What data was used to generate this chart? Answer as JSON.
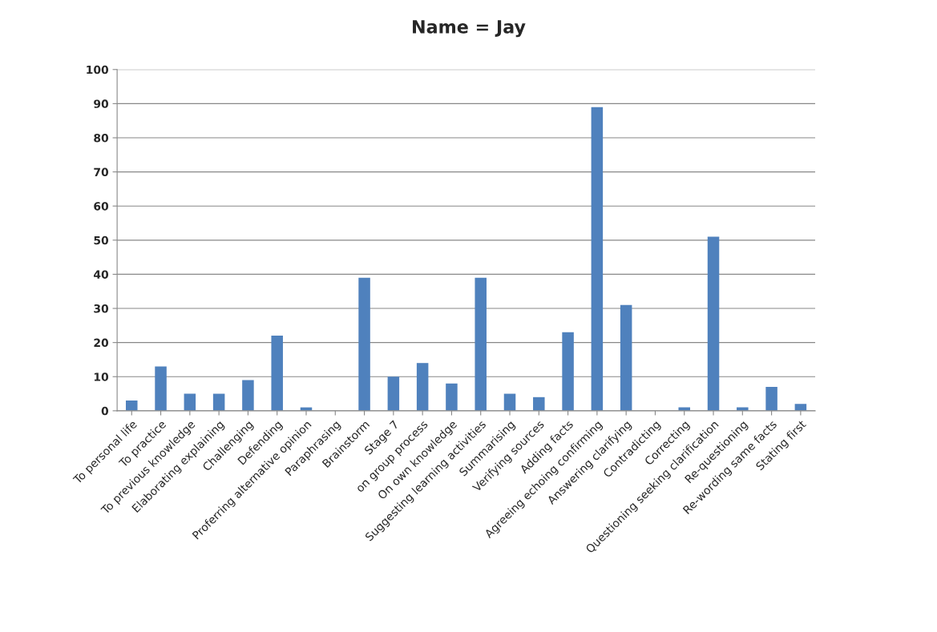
{
  "chart_data": {
    "type": "bar",
    "title": "Name = Jay",
    "categories": [
      "To personal life",
      "To practice",
      "To previous knowledge",
      "Elaborating explaining",
      "Challenging",
      "Defending",
      "Proferring alternative opinion",
      "Paraphrasing",
      "Brainstorm",
      "Stage 7",
      "on group process",
      "On own knowledge",
      "Suggesting learning activities",
      "Summarising",
      "Verifying sources",
      "Adding facts",
      "Agreeing echoing confirming",
      "Answering clarifying",
      "Contradicting",
      "Correcting",
      "Questioning seeking clarification",
      "Re-questioning",
      "Re-wording same facts",
      "Stating first"
    ],
    "values": [
      3,
      13,
      5,
      5,
      9,
      22,
      1,
      0,
      39,
      10,
      14,
      8,
      39,
      5,
      4,
      23,
      89,
      31,
      0,
      1,
      51,
      1,
      7,
      2
    ],
    "color": "#4f81bd",
    "ylim": [
      0,
      100
    ],
    "yticks": [
      0,
      10,
      20,
      30,
      40,
      50,
      60,
      70,
      80,
      90,
      100
    ],
    "grid": "y"
  }
}
